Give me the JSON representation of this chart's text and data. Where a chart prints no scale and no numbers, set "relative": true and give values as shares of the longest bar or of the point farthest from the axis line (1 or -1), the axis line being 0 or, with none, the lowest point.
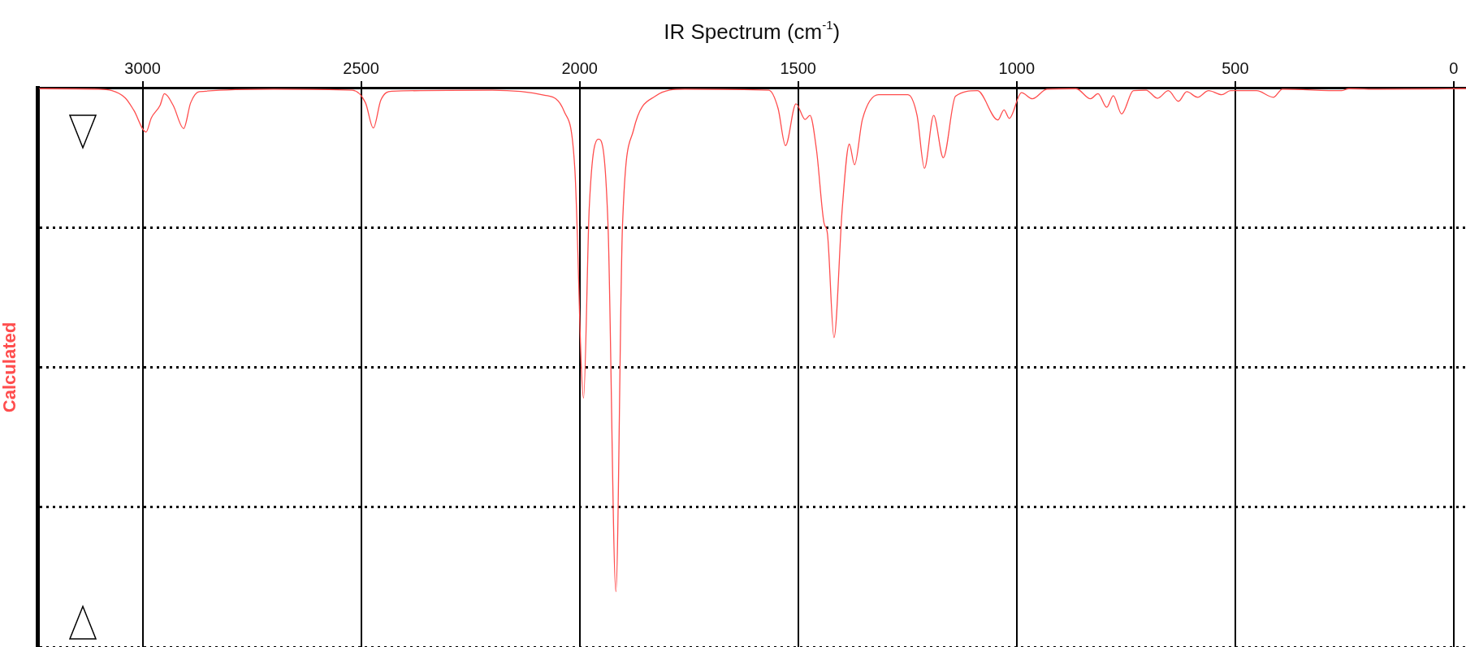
{
  "chart_data": {
    "type": "line",
    "title": "IR Spectrum (cm$^{-1}$)",
    "ylabel": "Calculated",
    "relative": true,
    "grid": true,
    "legend": false,
    "marker": "none",
    "line_style": "solid",
    "xlim": [
      3240,
      -28
    ],
    "xticks": [
      3000,
      2500,
      2000,
      1500,
      1000,
      500,
      0
    ],
    "series": [
      {
        "color": "#ff4d4d",
        "x": [
          3240,
          3100,
          3040,
          3020,
          2992,
          2980,
          2960,
          2950,
          2930,
          2906,
          2890,
          2870,
          2700,
          2520,
          2490,
          2472,
          2455,
          2430,
          2200,
          2080,
          2035,
          2011,
          1991,
          1978,
          1957,
          1935,
          1917,
          1902,
          1877,
          1827,
          1760,
          1567,
          1546,
          1529,
          1505,
          1484,
          1473,
          1458,
          1441,
          1433,
          1418,
          1399,
          1383,
          1371,
          1353,
          1316,
          1249,
          1228,
          1211,
          1190,
          1168,
          1140,
          1090,
          1043,
          1029,
          1017,
          989,
          964,
          931,
          864,
          831,
          814,
          794,
          779,
          760,
          733,
          704,
          678,
          653,
          630,
          611,
          586,
          561,
          531,
          511,
          451,
          413,
          392,
          257,
          240,
          172,
          -28
        ],
        "values": [
          -0.002,
          -0.003,
          -0.02,
          -0.045,
          -0.088,
          -0.06,
          -0.035,
          -0.012,
          -0.035,
          -0.081,
          -0.03,
          -0.008,
          -0.003,
          -0.005,
          -0.03,
          -0.08,
          -0.025,
          -0.007,
          -0.005,
          -0.015,
          -0.048,
          -0.161,
          -0.616,
          -0.238,
          -0.102,
          -0.275,
          -1,
          -0.275,
          -0.085,
          -0.017,
          -0.003,
          -0.005,
          -0.041,
          -0.115,
          -0.032,
          -0.063,
          -0.055,
          -0.124,
          -0.268,
          -0.29,
          -0.496,
          -0.238,
          -0.112,
          -0.153,
          -0.063,
          -0.014,
          -0.014,
          -0.055,
          -0.16,
          -0.055,
          -0.139,
          -0.017,
          -0.006,
          -0.064,
          -0.044,
          -0.061,
          -0.01,
          -0.022,
          -0.003,
          -0.002,
          -0.022,
          -0.012,
          -0.039,
          -0.016,
          -0.052,
          -0.006,
          -0.005,
          -0.021,
          -0.006,
          -0.027,
          -0.008,
          -0.019,
          -0.006,
          -0.014,
          -0.006,
          -0.006,
          -0.019,
          -0.003,
          -0.006,
          -0.002,
          -0.003,
          -0.002
        ]
      }
    ]
  }
}
